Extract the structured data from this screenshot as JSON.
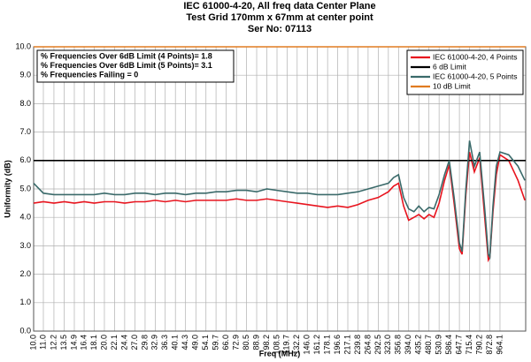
{
  "chart_data": {
    "type": "line",
    "title": [
      "IEC 61000-4-20, All freq data Center Plane",
      "Test Grid 170mm x 67mm at center point",
      "Ser No: 07113"
    ],
    "annotations": [
      "% Frequencies Over 6dB Limit (4 Points)= 1.8",
      "% Frequencies Over 6dB Limit (5 Points)= 3.1",
      "% Frequencies Failing = 0"
    ],
    "x_label": "Freq (MHz)",
    "y_label": "Uniformity (dB)",
    "x_scale": "log",
    "grid": true,
    "legend": "top-right",
    "xlim": [
      10,
      1240
    ],
    "ylim": [
      0,
      10
    ],
    "yticks": [
      {
        "value": 0,
        "label": "0.0"
      },
      {
        "value": 1,
        "label": "1.0"
      },
      {
        "value": 2,
        "label": "2.0"
      },
      {
        "value": 3,
        "label": "3.0"
      },
      {
        "value": 4,
        "label": "4.0"
      },
      {
        "value": 5,
        "label": "5.0"
      },
      {
        "value": 6,
        "label": "6.0"
      },
      {
        "value": 7,
        "label": "7.0"
      },
      {
        "value": 8,
        "label": "8.0"
      },
      {
        "value": 9,
        "label": "9.0"
      },
      {
        "value": 10,
        "label": "10.0"
      }
    ],
    "xticks": [
      {
        "value": 10,
        "label": "10.0"
      },
      {
        "value": 11,
        "label": "11.0"
      },
      12.2,
      13.5,
      14.9,
      16.4,
      18.1,
      {
        "value": 20,
        "label": "20.0"
      },
      22.1,
      24.4,
      {
        "value": 27,
        "label": "27.0"
      },
      29.8,
      32.9,
      36.3,
      40.1,
      44.3,
      {
        "value": 49,
        "label": "49.0"
      },
      54.1,
      59.7,
      {
        "value": 66,
        "label": "66.0"
      },
      72.9,
      80.5,
      88.9,
      98.2,
      108.5,
      119.7,
      132.2,
      {
        "value": 146,
        "label": "146.0"
      },
      161.2,
      178.1,
      196.6,
      217.1,
      239.8,
      264.8,
      292.5,
      {
        "value": 323,
        "label": "323.0"
      },
      356.8,
      {
        "value": 394,
        "label": "394.0"
      },
      435.2,
      480.7,
      530.9,
      586.4,
      647.7,
      715.4,
      790.2,
      872.8,
      964.1
    ],
    "series": [
      {
        "name": "IEC 61000-4-20, 4 Points",
        "color": "#e8141e",
        "x": [
          10,
          11,
          12.2,
          13.5,
          14.9,
          16.4,
          18.1,
          20,
          22.1,
          24.4,
          27,
          29.8,
          32.9,
          36.3,
          40.1,
          44.3,
          49,
          54.1,
          59.7,
          66,
          72.9,
          80.5,
          88.9,
          98.2,
          108.5,
          119.7,
          132.2,
          146,
          161.2,
          178.1,
          196.6,
          217.1,
          239.8,
          264.8,
          292.5,
          323,
          340,
          356.8,
          375,
          394,
          415,
          435.2,
          458,
          480.7,
          505,
          530.9,
          560,
          586.4,
          615,
          647.7,
          665,
          690,
          715.4,
          750,
          790.2,
          830,
          860,
          872.8,
          900,
          930,
          964.1,
          1050,
          1150,
          1230
        ],
        "values": [
          4.5,
          4.55,
          4.5,
          4.55,
          4.5,
          4.55,
          4.5,
          4.55,
          4.55,
          4.5,
          4.55,
          4.55,
          4.6,
          4.55,
          4.6,
          4.55,
          4.6,
          4.6,
          4.6,
          4.6,
          4.65,
          4.6,
          4.6,
          4.65,
          4.6,
          4.55,
          4.5,
          4.45,
          4.4,
          4.35,
          4.4,
          4.35,
          4.45,
          4.6,
          4.7,
          4.9,
          5.1,
          5.2,
          4.4,
          3.9,
          4.0,
          4.1,
          3.95,
          4.1,
          4.0,
          4.5,
          5.3,
          5.85,
          4.5,
          2.9,
          2.7,
          4.8,
          6.3,
          5.6,
          6.1,
          4.0,
          2.5,
          2.6,
          4.2,
          5.5,
          6.2,
          6.0,
          5.3,
          4.6
        ]
      },
      {
        "name": "6 dB Limit",
        "color": "#000000",
        "x": [
          10,
          1240
        ],
        "values": [
          6,
          6
        ]
      },
      {
        "name": "IEC 61000-4-20, 5 Points",
        "color": "#3a6a6a",
        "x": [
          10,
          11,
          12.2,
          13.5,
          14.9,
          16.4,
          18.1,
          20,
          22.1,
          24.4,
          27,
          29.8,
          32.9,
          36.3,
          40.1,
          44.3,
          49,
          54.1,
          59.7,
          66,
          72.9,
          80.5,
          88.9,
          98.2,
          108.5,
          119.7,
          132.2,
          146,
          161.2,
          178.1,
          196.6,
          217.1,
          239.8,
          264.8,
          292.5,
          323,
          340,
          356.8,
          375,
          394,
          415,
          435.2,
          458,
          480.7,
          505,
          530.9,
          560,
          586.4,
          615,
          647.7,
          665,
          690,
          715.4,
          750,
          790.2,
          830,
          860,
          872.8,
          900,
          930,
          964.1,
          1050,
          1150,
          1230
        ],
        "values": [
          5.2,
          4.85,
          4.8,
          4.8,
          4.8,
          4.8,
          4.8,
          4.85,
          4.8,
          4.8,
          4.85,
          4.85,
          4.8,
          4.85,
          4.85,
          4.8,
          4.85,
          4.85,
          4.9,
          4.9,
          4.95,
          4.95,
          4.9,
          5.0,
          4.95,
          4.9,
          4.85,
          4.85,
          4.8,
          4.8,
          4.8,
          4.85,
          4.9,
          5.0,
          5.1,
          5.2,
          5.4,
          5.5,
          4.7,
          4.3,
          4.2,
          4.4,
          4.2,
          4.35,
          4.3,
          4.8,
          5.5,
          6.0,
          4.7,
          3.1,
          2.8,
          5.0,
          6.7,
          5.8,
          6.3,
          4.3,
          2.7,
          2.6,
          4.4,
          5.8,
          6.3,
          6.2,
          5.8,
          5.3
        ]
      },
      {
        "name": "10 dB Limit",
        "color": "#e07b20",
        "x": [
          10,
          1240
        ],
        "values": [
          10,
          10
        ]
      }
    ]
  }
}
